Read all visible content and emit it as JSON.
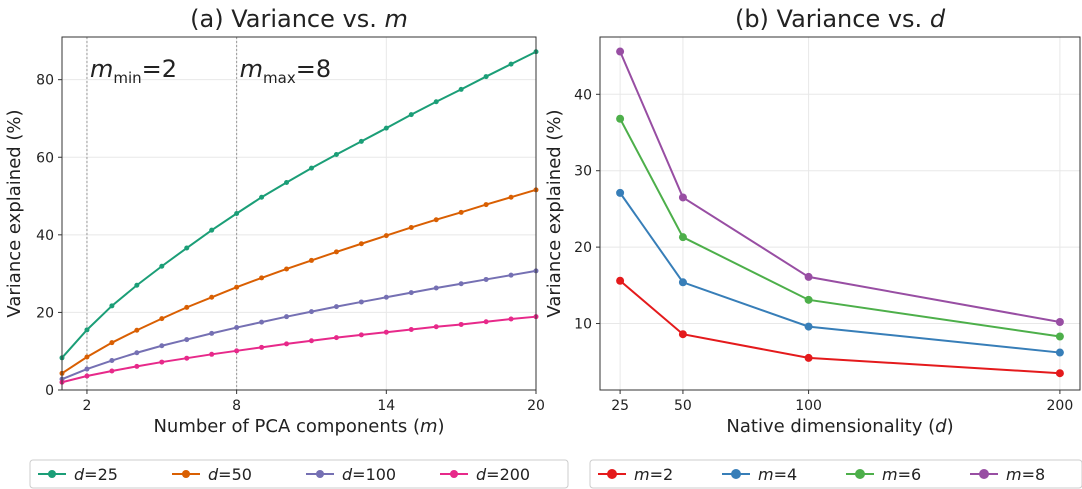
{
  "chart_data": [
    {
      "type": "line",
      "title_prefix": "(a)  Variance vs. ",
      "title_var": "m",
      "xlabel_prefix": "Number of PCA components (",
      "xlabel_var": "m",
      "xlabel_suffix": ")",
      "ylabel": "Variance explained (%)",
      "xlim": [
        1,
        20
      ],
      "ylim": [
        0,
        91
      ],
      "xticks": [
        2,
        8,
        14,
        20
      ],
      "yticks": [
        0,
        20,
        40,
        60,
        80
      ],
      "grid": true,
      "legend_position": "bottom",
      "vlines": [
        {
          "x": 2,
          "label_var": "m",
          "label_sub": "min",
          "label_value": "=2"
        },
        {
          "x": 8,
          "label_var": "m",
          "label_sub": "max",
          "label_value": "=8"
        }
      ],
      "x": [
        1,
        2,
        3,
        4,
        5,
        6,
        7,
        8,
        9,
        10,
        11,
        12,
        13,
        14,
        15,
        16,
        17,
        18,
        19,
        20
      ],
      "series": [
        {
          "legend_var": "d",
          "legend_value": "=25",
          "color": "#1b9e77",
          "values": [
            8.3,
            15.5,
            21.7,
            27.0,
            31.9,
            36.6,
            41.2,
            45.5,
            49.7,
            53.5,
            57.2,
            60.7,
            64.1,
            67.5,
            71.0,
            74.3,
            77.5,
            80.8,
            84.0,
            87.2
          ]
        },
        {
          "legend_var": "d",
          "legend_value": "=50",
          "color": "#d95f02",
          "values": [
            4.3,
            8.5,
            12.2,
            15.4,
            18.4,
            21.3,
            23.9,
            26.5,
            28.9,
            31.2,
            33.4,
            35.6,
            37.7,
            39.8,
            41.9,
            43.9,
            45.8,
            47.8,
            49.7,
            51.6
          ]
        },
        {
          "legend_var": "d",
          "legend_value": "=100",
          "color": "#7570b3",
          "values": [
            2.8,
            5.4,
            7.6,
            9.6,
            11.4,
            13.0,
            14.6,
            16.1,
            17.5,
            18.9,
            20.2,
            21.5,
            22.7,
            23.9,
            25.1,
            26.3,
            27.4,
            28.5,
            29.6,
            30.7
          ]
        },
        {
          "legend_var": "d",
          "legend_value": "=200",
          "color": "#e7298a",
          "values": [
            2.0,
            3.6,
            4.9,
            6.1,
            7.2,
            8.2,
            9.2,
            10.1,
            11.0,
            11.9,
            12.7,
            13.5,
            14.2,
            14.9,
            15.6,
            16.3,
            16.9,
            17.6,
            18.3,
            18.9
          ]
        }
      ]
    },
    {
      "type": "line",
      "title_prefix": "(b)  Variance vs. ",
      "title_var": "d",
      "xlabel_prefix": "Native dimensionality (",
      "xlabel_var": "d",
      "xlabel_suffix": ")",
      "ylabel": "Variance explained (%)",
      "xlim": [
        17,
        208
      ],
      "ylim": [
        1.3,
        47.5
      ],
      "xticks": [
        25,
        50,
        100,
        200
      ],
      "yticks": [
        10,
        20,
        30,
        40
      ],
      "grid": true,
      "legend_position": "bottom",
      "x": [
        25,
        50,
        100,
        200
      ],
      "series": [
        {
          "legend_var": "m",
          "legend_value": "=2",
          "color": "#e41a1c",
          "values": [
            15.6,
            8.6,
            5.5,
            3.5
          ]
        },
        {
          "legend_var": "m",
          "legend_value": "=4",
          "color": "#377eb8",
          "values": [
            27.1,
            15.4,
            9.6,
            6.2
          ]
        },
        {
          "legend_var": "m",
          "legend_value": "=6",
          "color": "#4daf4a",
          "values": [
            36.8,
            21.3,
            13.1,
            8.3
          ]
        },
        {
          "legend_var": "m",
          "legend_value": "=8",
          "color": "#984ea3",
          "values": [
            45.6,
            26.5,
            16.1,
            10.2
          ]
        }
      ]
    }
  ]
}
